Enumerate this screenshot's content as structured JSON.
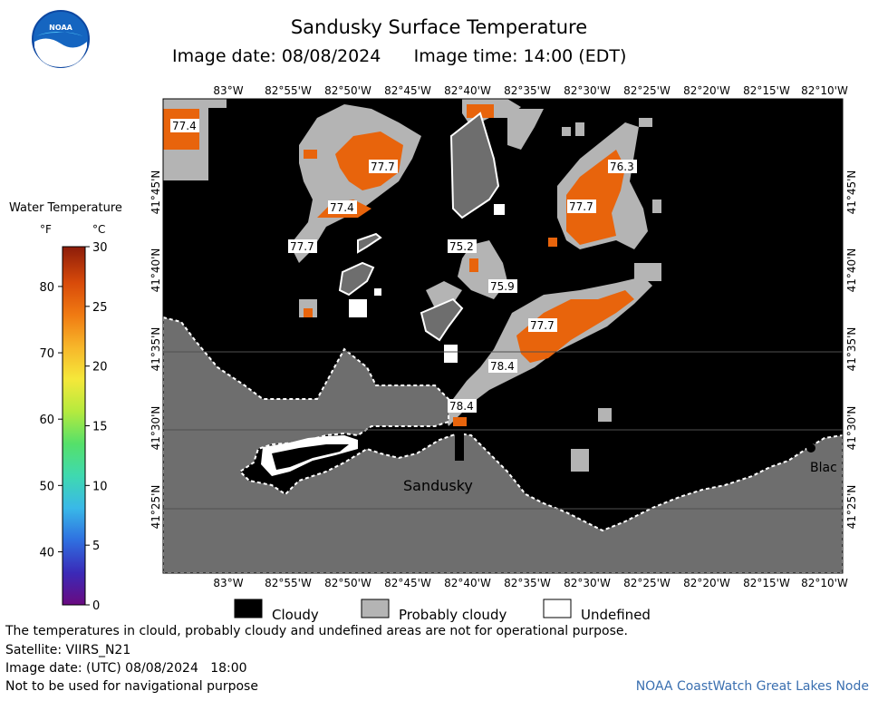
{
  "title": "Sandusky Surface Temperature",
  "image_date_label": "Image date: 08/08/2024",
  "image_time_label": "Image time: 14:00 (EDT)",
  "logo_text": "NOAA",
  "colorbar": {
    "title": "Water Temperature",
    "f_unit": "°F",
    "c_unit": "°C",
    "f_ticks": [
      "40",
      "50",
      "60",
      "70",
      "80"
    ],
    "f_values": [
      40,
      50,
      60,
      70,
      80
    ],
    "c_ticks": [
      "0",
      "5",
      "10",
      "15",
      "20",
      "25",
      "30"
    ],
    "c_values": [
      0,
      5,
      10,
      15,
      20,
      25,
      30
    ],
    "colors": [
      "#6a0a80",
      "#3a2ab8",
      "#2f6fe0",
      "#39b8e8",
      "#3fd9b0",
      "#55e06a",
      "#b5ea3e",
      "#f5e83a",
      "#f7b62a",
      "#f07a12",
      "#d84a0a",
      "#8c1c0a"
    ]
  },
  "axes": {
    "lon_labels": [
      "83°W",
      "82°55'W",
      "82°50'W",
      "82°45'W",
      "82°40'W",
      "82°35'W",
      "82°30'W",
      "82°25'W",
      "82°20'W",
      "82°15'W",
      "82°10'W"
    ],
    "lat_labels": [
      "41°45'N",
      "41°40'N",
      "41°35'N",
      "41°30'N",
      "41°25'N"
    ]
  },
  "map_labels": {
    "temperatures": [
      "77.4",
      "77.7",
      "77.4",
      "77.7",
      "75.2",
      "75.9",
      "76.3",
      "77.7",
      "77.7",
      "78.4",
      "78.4"
    ],
    "places": [
      "Sandusky",
      "Blac"
    ]
  },
  "legend": {
    "cloudy": "Cloudy",
    "probably_cloudy": "Probably cloudy",
    "undefined": "Undefined"
  },
  "colors": {
    "cloud": "#000000",
    "probably_cloudy": "#b4b4b4",
    "undefined": "#ffffff",
    "land": "#6e6e6e",
    "water_warm": "#e8640c"
  },
  "footer": {
    "disclaimer": "The temperatures in clould, probably cloudy and undefined areas are not for operational purpose.",
    "satellite": "Satellite: VIIRS_N21",
    "utc_date": "Image date: (UTC) 08/08/2024   18:00",
    "nav_warning": "Not to be used for navigational purpose",
    "credit": "NOAA CoastWatch Great Lakes Node"
  }
}
